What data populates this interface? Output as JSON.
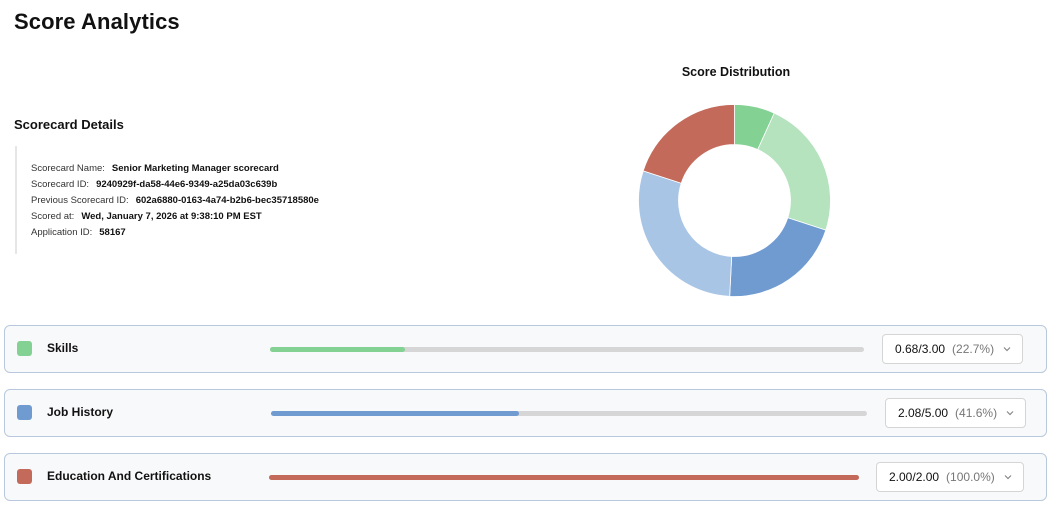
{
  "header": {
    "title": "Score Analytics"
  },
  "details": {
    "title": "Scorecard Details",
    "rows": [
      {
        "key": "Scorecard Name:",
        "value": "Senior Marketing Manager scorecard"
      },
      {
        "key": "Scorecard ID:",
        "value": "9240929f-da58-44e6-9349-a25da03c639b"
      },
      {
        "key": "Previous Scorecard ID:",
        "value": "602a6880-0163-4a74-b2b6-bec35718580e"
      },
      {
        "key": "Scored at:",
        "value": "Wed, January 7, 2026 at 9:38:10 PM EST"
      },
      {
        "key": "Application ID:",
        "value": "58167"
      }
    ]
  },
  "distribution": {
    "title": "Score Distribution",
    "segments": [
      {
        "category": "Skills",
        "value": 0.68,
        "color": "#84d194"
      },
      {
        "category": "Skills",
        "value": 2.32,
        "color": "#b4e3be"
      },
      {
        "category": "Job History",
        "value": 2.08,
        "color": "#6f9bd1"
      },
      {
        "category": "Job History",
        "value": 2.92,
        "color": "#a9c5e6"
      },
      {
        "category": "Education And Certifications",
        "value": 2.0,
        "color": "#c46a5a"
      }
    ]
  },
  "categories": [
    {
      "name": "Skills",
      "color": "#84d194",
      "fill_color": "#84d194",
      "progress": 0.227,
      "score": "0.68/3.00",
      "percent": "(22.7%)"
    },
    {
      "name": "Job History",
      "color": "#6f9bd1",
      "fill_color": "#6f9bd1",
      "progress": 0.416,
      "score": "2.08/5.00",
      "percent": "(41.6%)"
    },
    {
      "name": "Education And Certifications",
      "color": "#c46a5a",
      "fill_color": "#c46a5a",
      "progress": 1.0,
      "score": "2.00/2.00",
      "percent": "(100.0%)"
    }
  ]
}
